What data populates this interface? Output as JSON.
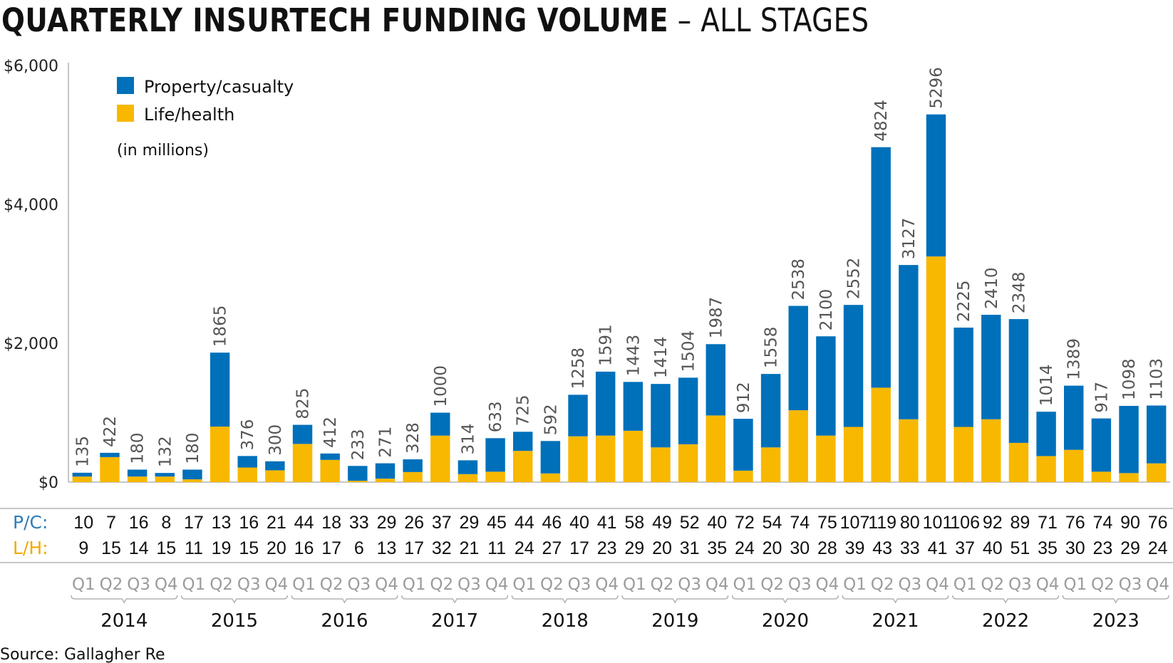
{
  "title": {
    "bold": "QUARTERLY INSURTECH FUNDING VOLUME",
    "separator": " – ",
    "light": "ALL STAGES"
  },
  "legend": {
    "items": [
      {
        "label": "Property/casualty",
        "color": "#0070BA"
      },
      {
        "label": "Life/health",
        "color": "#F8B800"
      }
    ],
    "units_note": "(in millions)"
  },
  "source": "Source: Gallagher Re",
  "row_labels": {
    "pc": "P/C:",
    "lh": "L/H:"
  },
  "colors": {
    "pc": "#0070BA",
    "lh": "#F8B800",
    "pc_label": "#2E7DB8",
    "lh_label": "#F2A900"
  },
  "chart_data": {
    "type": "bar",
    "stacked": true,
    "title": "QUARTERLY INSURTECH FUNDING VOLUME – ALL STAGES",
    "xlabel": "",
    "ylabel": "",
    "units": "in millions",
    "ylim": [
      0,
      6000
    ],
    "yticks": [
      0,
      2000,
      4000,
      6000
    ],
    "ytick_labels": [
      "$0",
      "$2,000",
      "$4,000",
      "$6,000"
    ],
    "legend_position": "top-left",
    "grid": false,
    "years": [
      "2014",
      "2015",
      "2016",
      "2017",
      "2018",
      "2019",
      "2020",
      "2021",
      "2022",
      "2023"
    ],
    "quarters": [
      "Q1",
      "Q2",
      "Q3",
      "Q4"
    ],
    "categories": [
      "2014 Q1",
      "2014 Q2",
      "2014 Q3",
      "2014 Q4",
      "2015 Q1",
      "2015 Q2",
      "2015 Q3",
      "2015 Q4",
      "2016 Q1",
      "2016 Q2",
      "2016 Q3",
      "2016 Q4",
      "2017 Q1",
      "2017 Q2",
      "2017 Q3",
      "2017 Q4",
      "2018 Q1",
      "2018 Q2",
      "2018 Q3",
      "2018 Q4",
      "2019 Q1",
      "2019 Q2",
      "2019 Q3",
      "2019 Q4",
      "2020 Q1",
      "2020 Q2",
      "2020 Q3",
      "2020 Q4",
      "2021 Q1",
      "2021 Q2",
      "2021 Q3",
      "2021 Q4",
      "2022 Q1",
      "2022 Q2",
      "2022 Q3",
      "2022 Q4",
      "2023 Q1",
      "2023 Q2",
      "2023 Q3",
      "2023 Q4"
    ],
    "totals": [
      135,
      422,
      180,
      132,
      180,
      1865,
      376,
      300,
      825,
      412,
      233,
      271,
      328,
      1000,
      314,
      633,
      725,
      592,
      1258,
      1591,
      1443,
      1414,
      1504,
      1987,
      912,
      1558,
      2538,
      2100,
      2552,
      4824,
      3127,
      5296,
      2225,
      2410,
      2348,
      1014,
      1389,
      917,
      1098,
      1103
    ],
    "series": [
      {
        "name": "Life/health",
        "values": [
          80,
          360,
          80,
          80,
          40,
          800,
          210,
          170,
          550,
          320,
          20,
          50,
          145,
          670,
          115,
          150,
          450,
          125,
          660,
          670,
          740,
          500,
          545,
          960,
          165,
          500,
          1035,
          670,
          795,
          1360,
          905,
          3250,
          795,
          905,
          565,
          375,
          465,
          150,
          130,
          270
        ]
      },
      {
        "name": "Property/casualty",
        "values": [
          55,
          62,
          100,
          52,
          140,
          1065,
          166,
          130,
          275,
          92,
          213,
          221,
          183,
          330,
          199,
          483,
          275,
          467,
          598,
          921,
          703,
          914,
          959,
          1027,
          747,
          1058,
          1503,
          1430,
          1757,
          3464,
          2222,
          2046,
          1430,
          1505,
          1783,
          639,
          924,
          767,
          968,
          833
        ]
      }
    ],
    "deal_counts": {
      "pc": [
        10,
        7,
        16,
        8,
        17,
        13,
        16,
        21,
        44,
        18,
        33,
        29,
        26,
        37,
        29,
        45,
        44,
        46,
        40,
        41,
        58,
        49,
        52,
        40,
        72,
        54,
        74,
        75,
        107,
        119,
        80,
        101,
        106,
        92,
        89,
        71,
        76,
        74,
        90,
        76
      ],
      "lh": [
        9,
        15,
        14,
        15,
        11,
        19,
        15,
        20,
        16,
        17,
        6,
        13,
        17,
        32,
        21,
        11,
        24,
        27,
        17,
        23,
        29,
        20,
        31,
        35,
        24,
        20,
        30,
        28,
        39,
        43,
        33,
        41,
        37,
        40,
        51,
        35,
        30,
        23,
        29,
        24
      ]
    }
  }
}
